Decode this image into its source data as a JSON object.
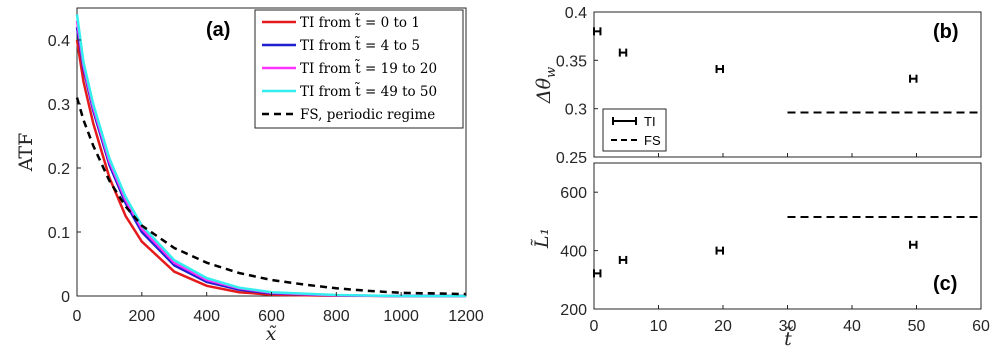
{
  "chart_data": [
    {
      "panel": "(a)",
      "type": "line",
      "xlabel": "x̃",
      "ylabel": "ATF",
      "xlim": [
        0,
        1200
      ],
      "ylim": [
        0,
        0.45
      ],
      "xticks": [
        "0",
        "200",
        "400",
        "600",
        "800",
        "1000",
        "1200"
      ],
      "yticks": [
        "0",
        "0.1",
        "0.2",
        "0.3",
        "0.4"
      ],
      "grid": false,
      "legend_position": "top-right",
      "series": [
        {
          "name": "TI from t̃ = 0 to 1",
          "color": "#e41a1c",
          "style": "solid",
          "x": [
            0,
            20,
            50,
            100,
            150,
            200,
            300,
            400,
            500,
            600,
            800,
            1000,
            1200
          ],
          "y": [
            0.4,
            0.335,
            0.27,
            0.185,
            0.125,
            0.085,
            0.038,
            0.016,
            0.006,
            0.002,
            0.0005,
            0,
            0
          ]
        },
        {
          "name": "TI from t̃ = 4 to 5",
          "color": "#1f1fcf",
          "style": "solid",
          "x": [
            0,
            20,
            50,
            100,
            150,
            200,
            300,
            400,
            500,
            600,
            800,
            1000,
            1200
          ],
          "y": [
            0.42,
            0.355,
            0.29,
            0.205,
            0.145,
            0.1,
            0.048,
            0.022,
            0.01,
            0.004,
            0.001,
            0,
            0
          ]
        },
        {
          "name": "TI from t̃ = 19 to 20",
          "color": "#ff33ff",
          "style": "solid",
          "x": [
            0,
            20,
            50,
            100,
            150,
            200,
            300,
            400,
            500,
            600,
            800,
            1000,
            1200
          ],
          "y": [
            0.43,
            0.36,
            0.295,
            0.21,
            0.15,
            0.105,
            0.052,
            0.025,
            0.012,
            0.005,
            0.001,
            0,
            0
          ]
        },
        {
          "name": "TI from t̃ = 49 to 50",
          "color": "#33eeee",
          "style": "solid",
          "x": [
            0,
            20,
            50,
            100,
            150,
            200,
            300,
            400,
            500,
            600,
            800,
            1000,
            1200
          ],
          "y": [
            0.44,
            0.365,
            0.3,
            0.215,
            0.155,
            0.11,
            0.056,
            0.028,
            0.013,
            0.006,
            0.0015,
            0,
            0
          ]
        },
        {
          "name": "FS, periodic regime",
          "color": "#000000",
          "style": "dashed",
          "x": [
            0,
            20,
            50,
            100,
            150,
            200,
            300,
            400,
            500,
            600,
            700,
            800,
            900,
            1000,
            1100,
            1200
          ],
          "y": [
            0.31,
            0.275,
            0.235,
            0.18,
            0.14,
            0.11,
            0.075,
            0.052,
            0.036,
            0.025,
            0.018,
            0.012,
            0.008,
            0.005,
            0.004,
            0.003
          ]
        }
      ]
    },
    {
      "panel": "(b)",
      "type": "scatter",
      "ylabel": "Δθ_w",
      "xlim": [
        0,
        60
      ],
      "ylim": [
        0.25,
        0.4
      ],
      "yticks": [
        "0.25",
        "0.3",
        "0.35",
        "0.4"
      ],
      "legend_position": "bottom-left",
      "series": [
        {
          "name": "TI",
          "style": "errorbar",
          "x": [
            0.5,
            4.5,
            19.5,
            49.5
          ],
          "y": [
            0.38,
            0.358,
            0.341,
            0.331
          ],
          "xerr": 0.5
        },
        {
          "name": "FS",
          "style": "dashed",
          "x": [
            30,
            60
          ],
          "y": [
            0.296,
            0.296
          ]
        }
      ]
    },
    {
      "panel": "(c)",
      "type": "scatter",
      "xlabel": "t̃",
      "ylabel": "L̃₁",
      "xlim": [
        0,
        60
      ],
      "ylim": [
        200,
        700
      ],
      "xticks": [
        "0",
        "10",
        "20",
        "30",
        "40",
        "50",
        "60"
      ],
      "yticks": [
        "200",
        "400",
        "600"
      ],
      "series": [
        {
          "name": "TI",
          "style": "errorbar",
          "x": [
            0.5,
            4.5,
            19.5,
            49.5
          ],
          "y": [
            322,
            368,
            400,
            420
          ],
          "xerr": 0.5
        },
        {
          "name": "FS",
          "style": "dashed",
          "x": [
            30,
            60
          ],
          "y": [
            515,
            515
          ]
        }
      ]
    }
  ]
}
